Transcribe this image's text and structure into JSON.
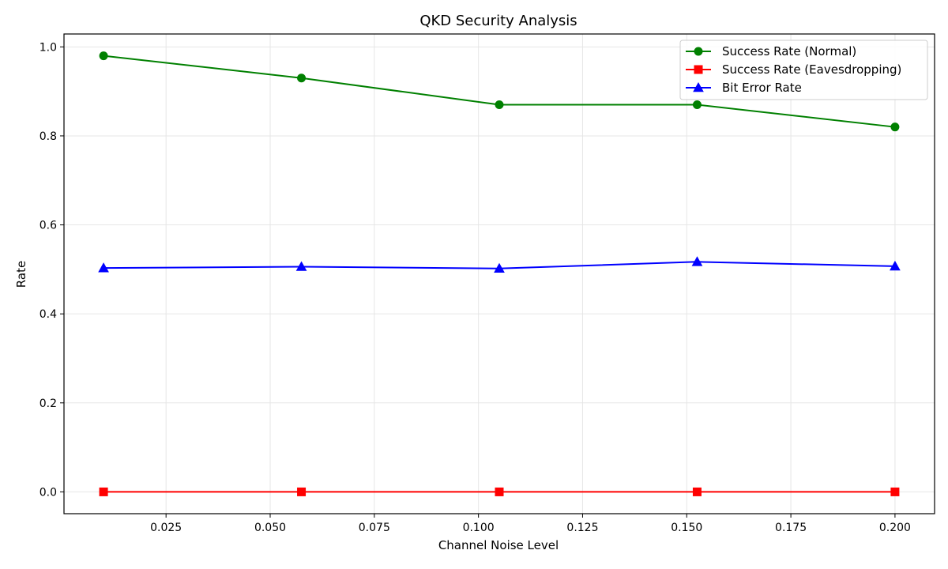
{
  "chart_data": {
    "type": "line",
    "title": "QKD Security Analysis",
    "xlabel": "Channel Noise Level",
    "ylabel": "Rate",
    "x": [
      0.01,
      0.0575,
      0.105,
      0.1525,
      0.2
    ],
    "xlim": [
      0.0005,
      0.2095
    ],
    "ylim": [
      -0.049,
      1.029
    ],
    "xticks": [
      0.025,
      0.05,
      0.075,
      0.1,
      0.125,
      0.15,
      0.175,
      0.2
    ],
    "xtick_labels": [
      "0.025",
      "0.050",
      "0.075",
      "0.100",
      "0.125",
      "0.150",
      "0.175",
      "0.200"
    ],
    "yticks": [
      0.0,
      0.2,
      0.4,
      0.6,
      0.8,
      1.0
    ],
    "ytick_labels": [
      "0.0",
      "0.2",
      "0.4",
      "0.6",
      "0.8",
      "1.0"
    ],
    "grid": true,
    "legend_position": "top-right",
    "series": [
      {
        "name": "Success Rate (Normal)",
        "color": "#008000",
        "marker": "circle",
        "values": [
          0.98,
          0.93,
          0.87,
          0.87,
          0.82
        ]
      },
      {
        "name": "Success Rate (Eavesdropping)",
        "color": "#ff0000",
        "marker": "square",
        "values": [
          0.0,
          0.0,
          0.0,
          0.0,
          0.0
        ]
      },
      {
        "name": "Bit Error Rate",
        "color": "#0000ff",
        "marker": "triangle",
        "values": [
          0.503,
          0.506,
          0.502,
          0.517,
          0.507
        ]
      }
    ]
  }
}
